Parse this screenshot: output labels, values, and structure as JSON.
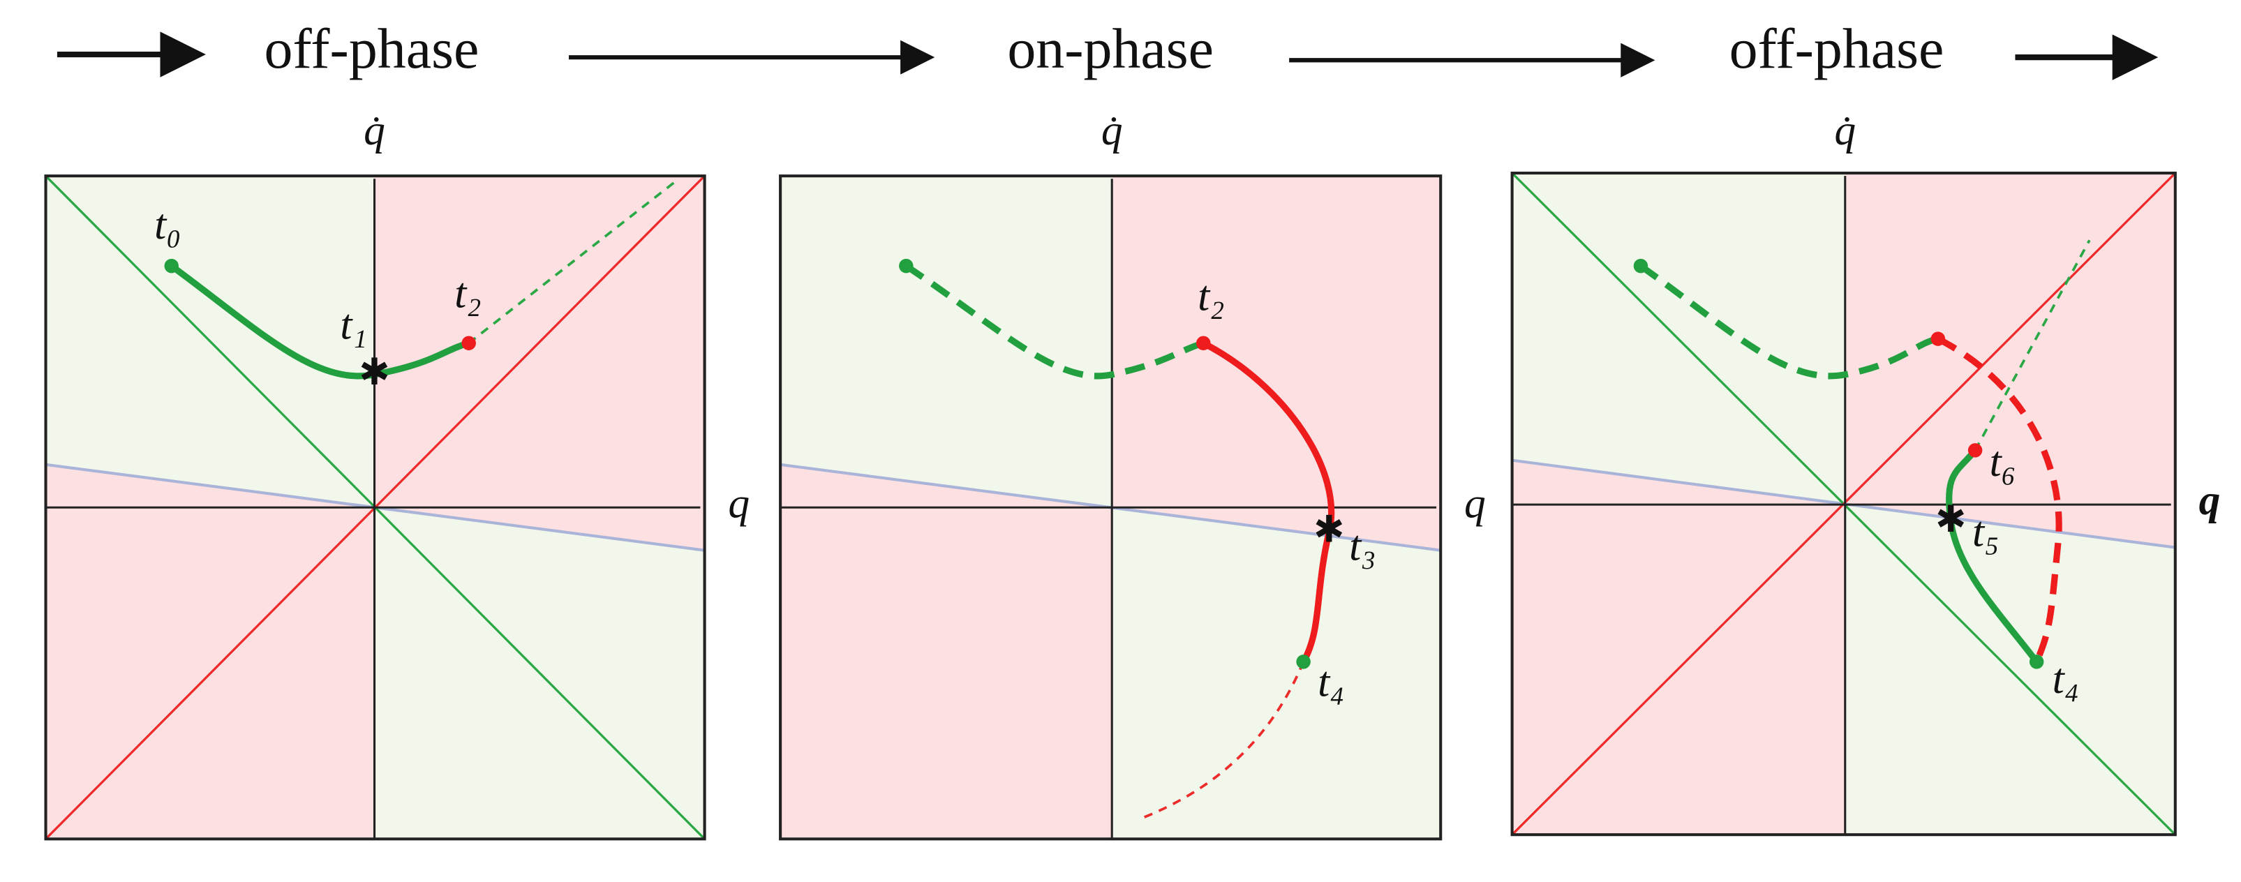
{
  "header": {
    "phases": [
      "off-phase",
      "on-phase",
      "off-phase"
    ]
  },
  "panels": [
    {
      "y_axis": "q̇",
      "x_axis": "q",
      "labels": [
        "t₀",
        "t₁",
        "t₂"
      ]
    },
    {
      "y_axis": "q̇",
      "x_axis": "q",
      "labels": [
        "t₂",
        "t₃",
        "t₄"
      ]
    },
    {
      "y_axis": "q̇",
      "x_axis": "q",
      "labels": [
        "t₆",
        "t₅",
        "t₄"
      ]
    }
  ]
}
